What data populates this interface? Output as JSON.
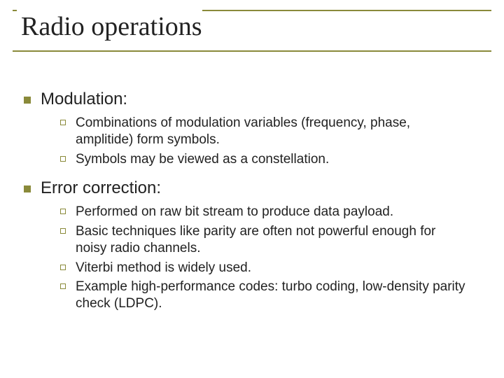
{
  "title": "Radio operations",
  "colors": {
    "accent": "#8a8a3a",
    "text": "#222222",
    "background": "#ffffff"
  },
  "typography": {
    "title_font": "Times New Roman",
    "title_size_pt": 38,
    "body_font": "Arial",
    "l1_size_pt": 24,
    "l2_size_pt": 19
  },
  "sections": [
    {
      "label": "Modulation:",
      "items": [
        "Combinations of modulation variables (frequency, phase, amplitide) form symbols.",
        "Symbols may be viewed as a constellation."
      ]
    },
    {
      "label": "Error correction:",
      "items": [
        "Performed on raw bit stream to produce data payload.",
        "Basic techniques like parity are often not powerful enough for noisy radio channels.",
        "Viterbi method is widely used.",
        "Example high-performance codes: turbo coding, low-density parity check (LDPC)."
      ]
    }
  ]
}
